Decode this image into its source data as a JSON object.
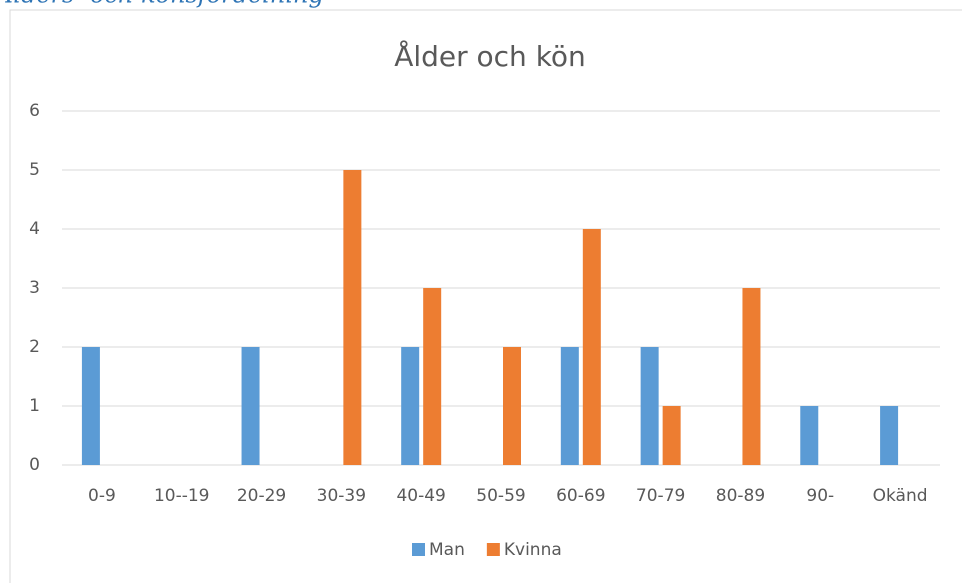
{
  "heading": "Ålders- och könsfördelning",
  "chart_data": {
    "type": "bar",
    "title": "Ålder och kön",
    "categories": [
      "0-9",
      "10--19",
      "20-29",
      "30-39",
      "40-49",
      "50-59",
      "60-69",
      "70-79",
      "80-89",
      "90-",
      "Okänd"
    ],
    "series": [
      {
        "name": "Man",
        "color": "#5b9bd5",
        "values": [
          2,
          0,
          2,
          0,
          2,
          0,
          2,
          2,
          0,
          1,
          1
        ]
      },
      {
        "name": "Kvinna",
        "color": "#ed7d31",
        "values": [
          0,
          0,
          0,
          5,
          3,
          2,
          4,
          1,
          3,
          0,
          0
        ]
      }
    ],
    "ylim": [
      0,
      6
    ],
    "yticks": [
      0,
      1,
      2,
      3,
      4,
      5,
      6
    ],
    "grid": true,
    "legend": "bottom"
  }
}
